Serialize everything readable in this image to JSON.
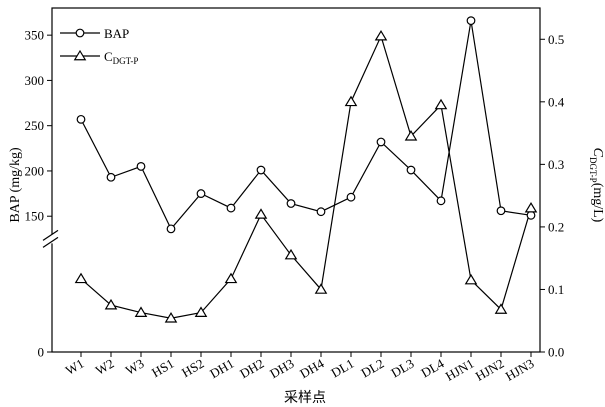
{
  "chart_data": {
    "type": "line",
    "x_categories": [
      "W1",
      "W2",
      "W3",
      "HS1",
      "HS2",
      "DH1",
      "DH2",
      "DH3",
      "DH4",
      "DL1",
      "DL2",
      "DL3",
      "DL4",
      "HJN1",
      "HJN2",
      "HJN3"
    ],
    "xlabel": "采样点",
    "ylabel_left": "BAP (mg/kg)",
    "ylabel_right": {
      "base": "C",
      "subscript": "DGT-P",
      "suffix": "(mg/L)"
    },
    "left_axis": {
      "range": [
        0,
        380
      ],
      "broken": true,
      "break_range": [
        0,
        130
      ],
      "ticks": [
        0,
        150,
        200,
        250,
        300,
        350
      ],
      "tick_labels": [
        "0",
        "150",
        "200",
        "250",
        "300",
        "350"
      ]
    },
    "right_axis": {
      "range": [
        0.0,
        0.55
      ],
      "ticks": [
        0.0,
        0.1,
        0.2,
        0.3,
        0.4,
        0.5
      ],
      "tick_labels": [
        "0.0",
        "0.1",
        "0.2",
        "0.3",
        "0.4",
        "0.5"
      ]
    },
    "legend_position": "top-left",
    "grid": false,
    "series": [
      {
        "name": "BAP",
        "axis": "left",
        "marker": "circle",
        "values": [
          257,
          193,
          205,
          136,
          175,
          159,
          201,
          164,
          155,
          171,
          232,
          201,
          167,
          366,
          156,
          151
        ]
      },
      {
        "name_base": "C",
        "name_subscript": "DGT-P",
        "axis": "right",
        "marker": "triangle",
        "values": [
          0.117,
          0.075,
          0.063,
          0.054,
          0.063,
          0.117,
          0.22,
          0.155,
          0.1,
          0.4,
          0.505,
          0.345,
          0.395,
          0.115,
          0.068,
          0.23
        ]
      }
    ]
  }
}
